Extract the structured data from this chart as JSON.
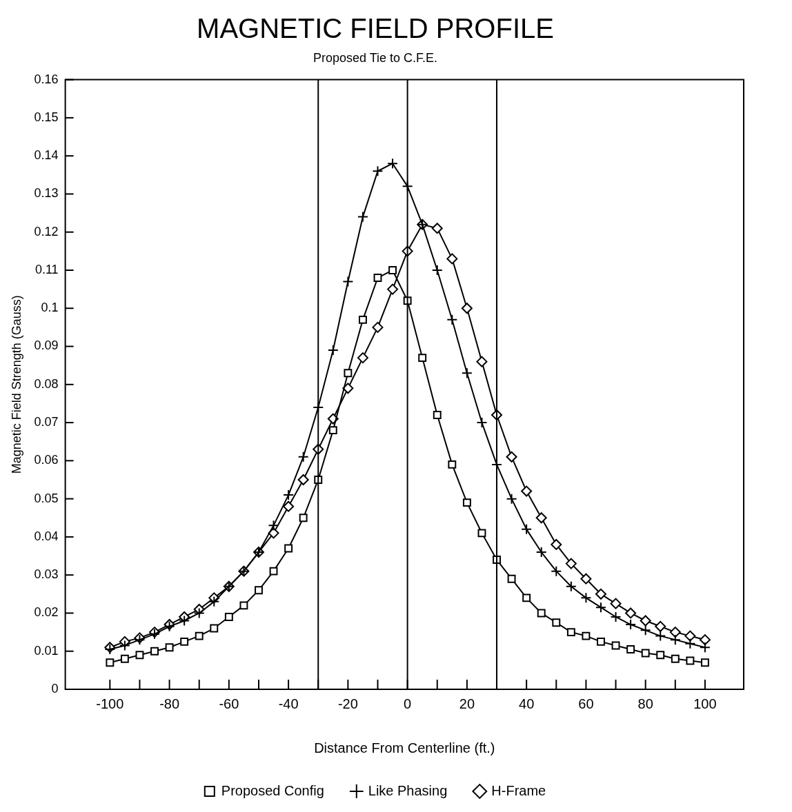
{
  "chart_data": {
    "type": "line",
    "title": "MAGNETIC FIELD PROFILE",
    "subtitle": "Proposed Tie to C.F.E.",
    "xlabel": "Distance From Centerline (ft.)",
    "ylabel": "Magnetic Field Strength (Gauss)",
    "x": [
      -100,
      -95,
      -90,
      -85,
      -80,
      -75,
      -70,
      -65,
      -60,
      -55,
      -50,
      -45,
      -40,
      -35,
      -30,
      -25,
      -20,
      -15,
      -10,
      -5,
      0,
      5,
      10,
      15,
      20,
      25,
      30,
      35,
      40,
      45,
      50,
      55,
      60,
      65,
      70,
      75,
      80,
      85,
      90,
      95,
      100
    ],
    "series": [
      {
        "name": "Proposed Config",
        "color": "#000000",
        "marker": "square",
        "values": [
          0.007,
          0.008,
          0.009,
          0.01,
          0.011,
          0.0125,
          0.014,
          0.016,
          0.019,
          0.022,
          0.026,
          0.031,
          0.037,
          0.045,
          0.055,
          0.068,
          0.083,
          0.097,
          0.108,
          0.11,
          0.102,
          0.087,
          0.072,
          0.059,
          0.049,
          0.041,
          0.034,
          0.029,
          0.024,
          0.02,
          0.0175,
          0.015,
          0.014,
          0.0125,
          0.0115,
          0.0105,
          0.0095,
          0.009,
          0.008,
          0.0075,
          0.007
        ]
      },
      {
        "name": "Like Phasing",
        "color": "#000000",
        "marker": "cross",
        "values": [
          0.0105,
          0.0115,
          0.013,
          0.0145,
          0.0165,
          0.018,
          0.02,
          0.023,
          0.027,
          0.031,
          0.036,
          0.043,
          0.051,
          0.061,
          0.074,
          0.089,
          0.107,
          0.124,
          0.136,
          0.138,
          0.132,
          0.122,
          0.11,
          0.097,
          0.083,
          0.07,
          0.059,
          0.05,
          0.042,
          0.036,
          0.031,
          0.027,
          0.024,
          0.0215,
          0.019,
          0.017,
          0.0155,
          0.014,
          0.013,
          0.012,
          0.011
        ]
      },
      {
        "name": "H-Frame",
        "color": "#000000",
        "marker": "diamond",
        "values": [
          0.011,
          0.0125,
          0.0135,
          0.015,
          0.017,
          0.019,
          0.021,
          0.024,
          0.027,
          0.031,
          0.036,
          0.041,
          0.048,
          0.055,
          0.063,
          0.071,
          0.079,
          0.087,
          0.095,
          0.105,
          0.115,
          0.122,
          0.121,
          0.113,
          0.1,
          0.086,
          0.072,
          0.061,
          0.052,
          0.045,
          0.038,
          0.033,
          0.029,
          0.025,
          0.0225,
          0.02,
          0.018,
          0.0165,
          0.015,
          0.014,
          0.013
        ]
      }
    ],
    "xlim": [
      -115,
      113
    ],
    "xticks": [
      -100,
      {
        "value": -90,
        "label": null
      },
      -80,
      {
        "value": -70,
        "label": null
      },
      -60,
      {
        "value": -50,
        "label": null
      },
      -40,
      {
        "value": -30,
        "label": null
      },
      -20,
      {
        "value": -10,
        "label": null
      },
      0,
      {
        "value": 10,
        "label": null
      },
      20,
      {
        "value": 30,
        "label": null
      },
      40,
      {
        "value": 50,
        "label": null
      },
      60,
      {
        "value": 70,
        "label": null
      },
      80,
      {
        "value": 90,
        "label": null
      },
      100
    ],
    "ylim": [
      0,
      0.16
    ],
    "yticks": [
      0,
      0.01,
      0.02,
      0.03,
      0.04,
      0.05,
      0.06,
      0.07,
      0.08,
      0.09,
      0.1,
      0.11,
      0.12,
      0.13,
      0.14,
      0.15,
      0.16
    ],
    "ref_lines": [
      {
        "axis": "x",
        "value": -30,
        "color": "#000000"
      },
      {
        "axis": "x",
        "value": 0,
        "color": "#000000"
      },
      {
        "axis": "x",
        "value": 30,
        "color": "#000000"
      }
    ],
    "grid": false,
    "legend": "bottom",
    "line_style": "solid"
  }
}
